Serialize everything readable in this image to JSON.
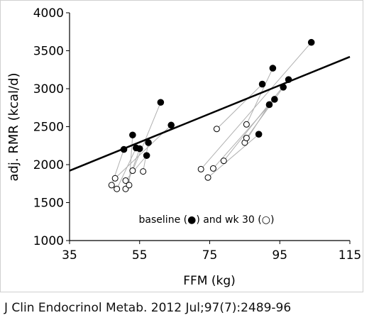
{
  "citation": "J Clin Endocrinol Metab. 2012 Jul;97(7):2489-96",
  "chart_data": {
    "type": "scatter",
    "xlabel": "FFM (kg)",
    "ylabel": "adj. RMR (kcal/d)",
    "xlim": [
      35,
      115
    ],
    "ylim": [
      1000,
      4000
    ],
    "xticks": [
      35,
      55,
      75,
      95,
      115
    ],
    "yticks": [
      1000,
      1500,
      2000,
      2500,
      3000,
      3500,
      4000
    ],
    "grid": false,
    "annotation": "baseline (●) and wk 30 (○)",
    "regression_line": {
      "x": [
        35,
        115
      ],
      "y": [
        1920,
        3420
      ]
    },
    "series": [
      {
        "marker": "filled-circle",
        "points": [
          [
            50.5,
            2200
          ],
          [
            53,
            2390
          ],
          [
            54,
            2220
          ],
          [
            55,
            2210
          ],
          [
            57,
            2120
          ],
          [
            57.5,
            2290
          ],
          [
            61,
            2820
          ],
          [
            64,
            2520
          ],
          [
            89,
            2400
          ],
          [
            90,
            3060
          ],
          [
            92,
            2790
          ],
          [
            93,
            3270
          ],
          [
            93.5,
            2860
          ],
          [
            96,
            3020
          ],
          [
            97.5,
            3120
          ],
          [
            104,
            3610
          ]
        ]
      },
      {
        "marker": "open-circle",
        "points": [
          [
            47,
            1730
          ],
          [
            48,
            1820
          ],
          [
            48.5,
            1680
          ],
          [
            51,
            1680
          ],
          [
            51,
            1790
          ],
          [
            52,
            1730
          ],
          [
            53,
            1920
          ],
          [
            56,
            1910
          ],
          [
            72.5,
            1940
          ],
          [
            74.5,
            1830
          ],
          [
            76,
            1950
          ],
          [
            77,
            2470
          ],
          [
            79,
            2050
          ],
          [
            85,
            2290
          ],
          [
            85.5,
            2350
          ],
          [
            85.5,
            2530
          ]
        ]
      }
    ],
    "connections": [
      [
        0,
        0
      ],
      [
        1,
        5
      ],
      [
        2,
        2
      ],
      [
        3,
        3
      ],
      [
        4,
        4
      ],
      [
        5,
        7
      ],
      [
        6,
        6
      ],
      [
        7,
        1
      ],
      [
        8,
        9
      ],
      [
        9,
        11
      ],
      [
        10,
        13
      ],
      [
        11,
        15
      ],
      [
        12,
        10
      ],
      [
        13,
        14
      ],
      [
        14,
        12
      ],
      [
        15,
        8
      ]
    ]
  }
}
